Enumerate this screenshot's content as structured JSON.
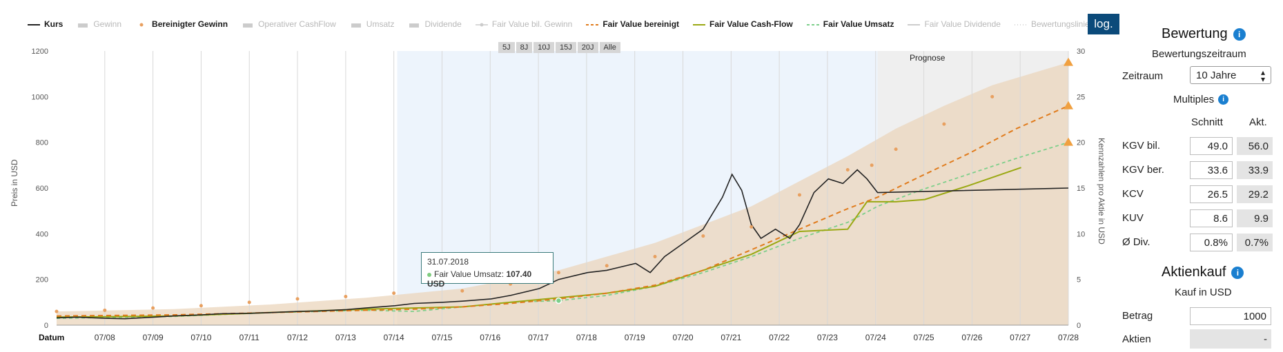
{
  "legend": [
    {
      "label": "Kurs",
      "on": true,
      "color": "#222222",
      "style": "solid"
    },
    {
      "label": "Gewinn",
      "on": false,
      "color": "#cccccc",
      "style": "area"
    },
    {
      "label": "Bereinigter Gewinn",
      "on": true,
      "color": "#e8a060",
      "style": "dot"
    },
    {
      "label": "Operativer CashFlow",
      "on": false,
      "color": "#cccccc",
      "style": "area"
    },
    {
      "label": "Umsatz",
      "on": false,
      "color": "#cccccc",
      "style": "area"
    },
    {
      "label": "Dividende",
      "on": false,
      "color": "#cccccc",
      "style": "area"
    },
    {
      "label": "Fair Value bil. Gewinn",
      "on": false,
      "color": "#cccccc",
      "style": "line-dot"
    },
    {
      "label": "Fair Value bereinigt",
      "on": true,
      "color": "#e07b1c",
      "style": "dashed"
    },
    {
      "label": "Fair Value Cash-Flow",
      "on": true,
      "color": "#9aa812",
      "style": "solid"
    },
    {
      "label": "Fair Value Umsatz",
      "on": true,
      "color": "#7ccf8a",
      "style": "dashed"
    },
    {
      "label": "Fair Value Dividende",
      "on": false,
      "color": "#cccccc",
      "style": "solid"
    },
    {
      "label": "Bewertungslinien",
      "on": false,
      "color": "#cccccc",
      "style": "dotted"
    }
  ],
  "log_button": "log.",
  "range_buttons": [
    "5J",
    "8J",
    "10J",
    "15J",
    "20J",
    "Alle"
  ],
  "prognose_label": "Prognose",
  "tooltip": {
    "date": "31.07.2018",
    "label": "Fair Value Umsatz:",
    "value": "107.40 USD"
  },
  "chart_data": {
    "type": "line",
    "xlabel": "Datum",
    "ylabel": "Preis in USD",
    "y2label": "Kennzahlen pro Aktie in USD",
    "x_ticks": [
      "07/08",
      "07/09",
      "07/10",
      "07/11",
      "07/12",
      "07/13",
      "07/14",
      "07/15",
      "07/16",
      "07/17",
      "07/18",
      "07/19",
      "07/20",
      "07/21",
      "07/22",
      "07/23",
      "07/24",
      "07/25",
      "07/26",
      "07/27",
      "07/28"
    ],
    "xlim": [
      2007.58,
      2028.58
    ],
    "ylim": [
      0,
      1200
    ],
    "y_ticks": [
      0,
      200,
      400,
      600,
      800,
      1000,
      1200
    ],
    "y2lim": [
      0,
      30
    ],
    "y2_ticks": [
      0,
      5,
      10,
      15,
      20,
      25,
      30
    ],
    "forecast_start": 2024.62,
    "highlight_range": [
      2014.65,
      2024.62
    ],
    "series": [
      {
        "name": "Kurs",
        "color": "#222222",
        "points": [
          [
            2007.58,
            32
          ],
          [
            2008.0,
            35
          ],
          [
            2008.6,
            30
          ],
          [
            2009.0,
            28
          ],
          [
            2009.6,
            35
          ],
          [
            2010.0,
            40
          ],
          [
            2010.6,
            45
          ],
          [
            2011.0,
            50
          ],
          [
            2011.6,
            52
          ],
          [
            2012.0,
            55
          ],
          [
            2012.6,
            60
          ],
          [
            2013.0,
            62
          ],
          [
            2013.6,
            68
          ],
          [
            2014.0,
            75
          ],
          [
            2014.6,
            85
          ],
          [
            2015.0,
            95
          ],
          [
            2015.6,
            100
          ],
          [
            2016.0,
            105
          ],
          [
            2016.6,
            115
          ],
          [
            2017.0,
            130
          ],
          [
            2017.6,
            160
          ],
          [
            2018.0,
            200
          ],
          [
            2018.6,
            230
          ],
          [
            2019.0,
            240
          ],
          [
            2019.6,
            270
          ],
          [
            2019.9,
            230
          ],
          [
            2020.2,
            300
          ],
          [
            2020.6,
            360
          ],
          [
            2021.0,
            420
          ],
          [
            2021.4,
            560
          ],
          [
            2021.6,
            660
          ],
          [
            2021.8,
            590
          ],
          [
            2022.0,
            440
          ],
          [
            2022.2,
            380
          ],
          [
            2022.5,
            420
          ],
          [
            2022.8,
            380
          ],
          [
            2023.0,
            440
          ],
          [
            2023.3,
            580
          ],
          [
            2023.6,
            640
          ],
          [
            2023.9,
            620
          ],
          [
            2024.2,
            680
          ],
          [
            2024.4,
            640
          ],
          [
            2024.62,
            580
          ],
          [
            2028.58,
            600
          ]
        ]
      },
      {
        "name": "Fair Value bereinigt",
        "color": "#e07b1c",
        "points": [
          [
            2007.58,
            40
          ],
          [
            2010.0,
            45
          ],
          [
            2012.0,
            55
          ],
          [
            2014.0,
            65
          ],
          [
            2015.0,
            70
          ],
          [
            2016.0,
            80
          ],
          [
            2017.0,
            95
          ],
          [
            2018.0,
            115
          ],
          [
            2019.0,
            140
          ],
          [
            2020.0,
            175
          ],
          [
            2021.0,
            240
          ],
          [
            2022.0,
            330
          ],
          [
            2023.0,
            420
          ],
          [
            2024.0,
            510
          ],
          [
            2024.62,
            560
          ],
          [
            2025.5,
            650
          ],
          [
            2026.5,
            750
          ],
          [
            2027.5,
            860
          ],
          [
            2028.58,
            960
          ]
        ]
      },
      {
        "name": "Fair Value Cash-Flow",
        "color": "#9aa812",
        "points": [
          [
            2007.58,
            35
          ],
          [
            2010.0,
            40
          ],
          [
            2012.0,
            55
          ],
          [
            2014.0,
            70
          ],
          [
            2015.0,
            75
          ],
          [
            2016.0,
            80
          ],
          [
            2017.0,
            100
          ],
          [
            2018.0,
            120
          ],
          [
            2019.0,
            140
          ],
          [
            2020.0,
            170
          ],
          [
            2021.0,
            240
          ],
          [
            2022.0,
            310
          ],
          [
            2023.0,
            410
          ],
          [
            2024.0,
            420
          ],
          [
            2024.4,
            540
          ],
          [
            2025.0,
            540
          ],
          [
            2025.6,
            550
          ],
          [
            2026.5,
            610
          ],
          [
            2027.6,
            690
          ]
        ]
      },
      {
        "name": "Fair Value Umsatz",
        "color": "#7ccf8a",
        "points": [
          [
            2007.58,
            30
          ],
          [
            2010.0,
            38
          ],
          [
            2012.0,
            55
          ],
          [
            2014.0,
            65
          ],
          [
            2015.0,
            60
          ],
          [
            2016.0,
            80
          ],
          [
            2017.0,
            100
          ],
          [
            2018.0,
            107
          ],
          [
            2019.0,
            130
          ],
          [
            2020.0,
            170
          ],
          [
            2021.0,
            230
          ],
          [
            2022.0,
            300
          ],
          [
            2023.0,
            380
          ],
          [
            2024.0,
            450
          ],
          [
            2024.62,
            520
          ],
          [
            2025.5,
            590
          ],
          [
            2026.5,
            660
          ],
          [
            2027.5,
            730
          ],
          [
            2028.58,
            800
          ]
        ]
      }
    ],
    "dots": {
      "name": "Bereinigter Gewinn",
      "color": "#e8a060",
      "points": [
        [
          2007.58,
          60
        ],
        [
          2008.58,
          65
        ],
        [
          2009.58,
          75
        ],
        [
          2010.58,
          85
        ],
        [
          2011.58,
          100
        ],
        [
          2012.58,
          115
        ],
        [
          2013.58,
          125
        ],
        [
          2014.58,
          140
        ],
        [
          2016.0,
          150
        ],
        [
          2017.0,
          180
        ],
        [
          2018.0,
          230
        ],
        [
          2019.0,
          260
        ],
        [
          2020.0,
          300
        ],
        [
          2021.0,
          390
        ],
        [
          2022.0,
          430
        ],
        [
          2023.0,
          570
        ],
        [
          2024.0,
          680
        ],
        [
          2024.5,
          700
        ],
        [
          2025.0,
          770
        ],
        [
          2026.0,
          880
        ],
        [
          2027.0,
          1000
        ]
      ]
    },
    "band": {
      "name": "Bewertungsband",
      "color": "#ebd6bc",
      "upper": [
        [
          2007.58,
          60
        ],
        [
          2010.0,
          70
        ],
        [
          2012.0,
          90
        ],
        [
          2014.0,
          120
        ],
        [
          2016.0,
          160
        ],
        [
          2017.0,
          200
        ],
        [
          2018.0,
          240
        ],
        [
          2019.0,
          300
        ],
        [
          2020.0,
          360
        ],
        [
          2021.0,
          440
        ],
        [
          2022.0,
          520
        ],
        [
          2023.0,
          630
        ],
        [
          2024.0,
          740
        ],
        [
          2025.0,
          860
        ],
        [
          2026.0,
          960
        ],
        [
          2027.0,
          1050
        ],
        [
          2028.58,
          1150
        ]
      ]
    },
    "markers": [
      {
        "y": 1150,
        "color": "#f0a040"
      },
      {
        "y": 960,
        "color": "#f0a040"
      },
      {
        "y": 800,
        "color": "#f0a040"
      }
    ]
  },
  "panel": {
    "bewertung_title": "Bewertung",
    "zeitraum_heading": "Bewertungszeitraum",
    "zeitraum_label": "Zeitraum",
    "zeitraum_value": "10 Jahre",
    "multiples_title": "Multiples",
    "col_schnitt": "Schnitt",
    "col_akt": "Akt.",
    "rows": [
      {
        "label": "KGV bil.",
        "schnitt": "49.0",
        "akt": "56.0"
      },
      {
        "label": "KGV ber.",
        "schnitt": "33.6",
        "akt": "33.9"
      },
      {
        "label": "KCV",
        "schnitt": "26.5",
        "akt": "29.2"
      },
      {
        "label": "KUV",
        "schnitt": "8.6",
        "akt": "9.9"
      },
      {
        "label": "Ø Div.",
        "schnitt": "0.8%",
        "akt": "0.7%"
      }
    ],
    "aktienkauf_title": "Aktienkauf",
    "kauf_heading": "Kauf in USD",
    "betrag_label": "Betrag",
    "betrag_value": "1000",
    "aktien_label": "Aktien",
    "aktien_value": "-"
  }
}
